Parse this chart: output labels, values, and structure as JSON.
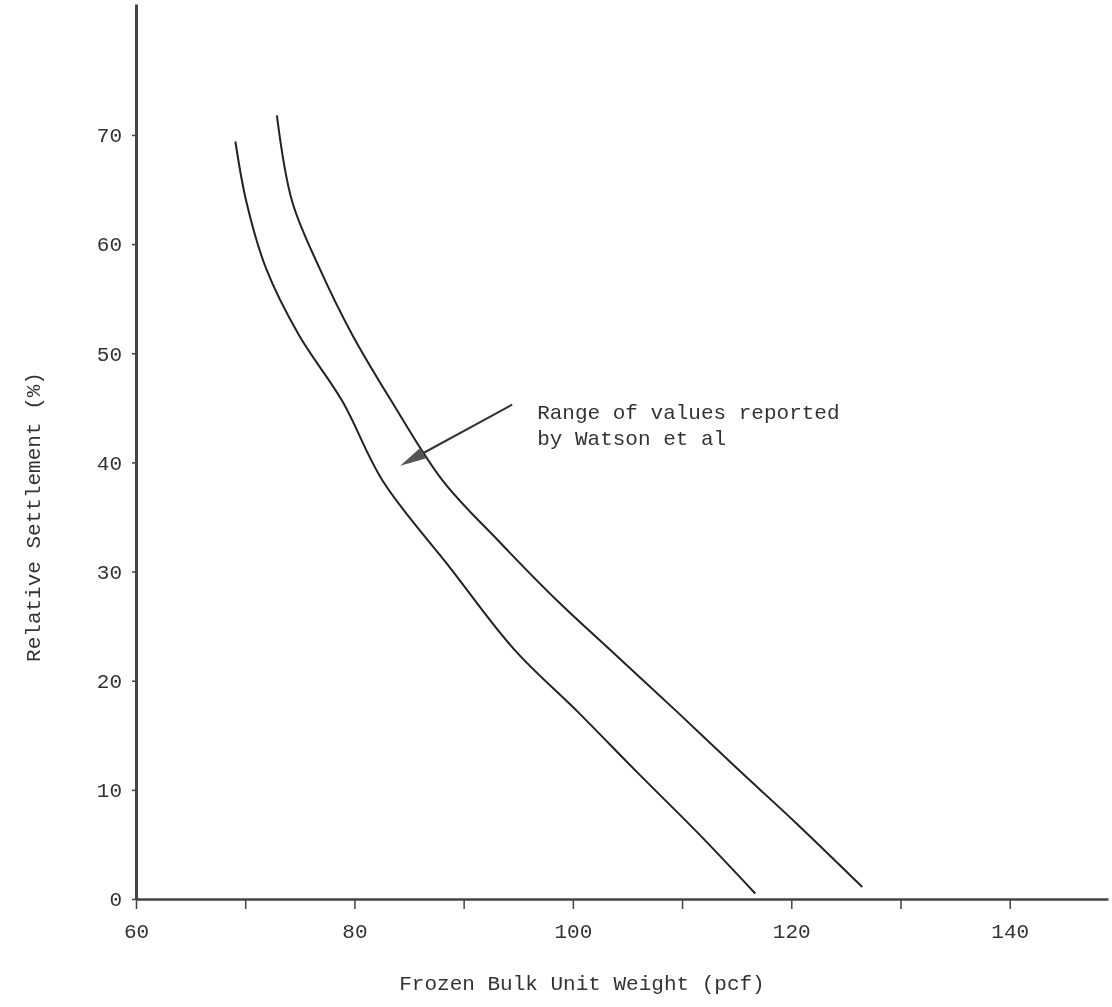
{
  "chart_data": {
    "type": "line",
    "xlabel": "Frozen Bulk Unit Weight (pcf)",
    "ylabel": "Relative Settlement (%)",
    "xlim": [
      60,
      149
    ],
    "ylim": [
      0,
      82
    ],
    "xticks": [
      60,
      {
        "value": 70,
        "label": null
      },
      80,
      {
        "value": 90,
        "label": null
      },
      100,
      {
        "value": 110,
        "label": null
      },
      120,
      {
        "value": 130,
        "label": null
      },
      140
    ],
    "yticks": [
      0,
      10,
      20,
      30,
      40,
      50,
      60,
      70
    ],
    "grid": false,
    "marker": "none",
    "line_style": "solid",
    "series": [
      {
        "color": "#222222",
        "x": [
          69.1,
          70.1,
          71.9,
          74.9,
          78.9,
          82.6,
          88.8,
          94.6,
          100.5,
          105.9,
          111.4,
          116.7
        ],
        "values": [
          69.4,
          63.9,
          57.8,
          51.7,
          45.6,
          38.3,
          30.3,
          22.9,
          17.1,
          11.6,
          6.1,
          0.5
        ]
      },
      {
        "color": "#222222",
        "x": [
          72.9,
          74.3,
          76.8,
          79.8,
          83.4,
          88.1,
          93.2,
          98.6,
          104.1,
          109.6,
          115.0,
          120.5,
          126.5
        ],
        "values": [
          71.8,
          63.9,
          57.8,
          51.7,
          45.6,
          38.3,
          32.8,
          27.3,
          22.2,
          17.1,
          12.0,
          6.9,
          1.1
        ]
      }
    ],
    "annotations": [
      {
        "text": "Range of values reported\nby Watson et al",
        "x": 86.2,
        "y": 40.8
      }
    ]
  }
}
